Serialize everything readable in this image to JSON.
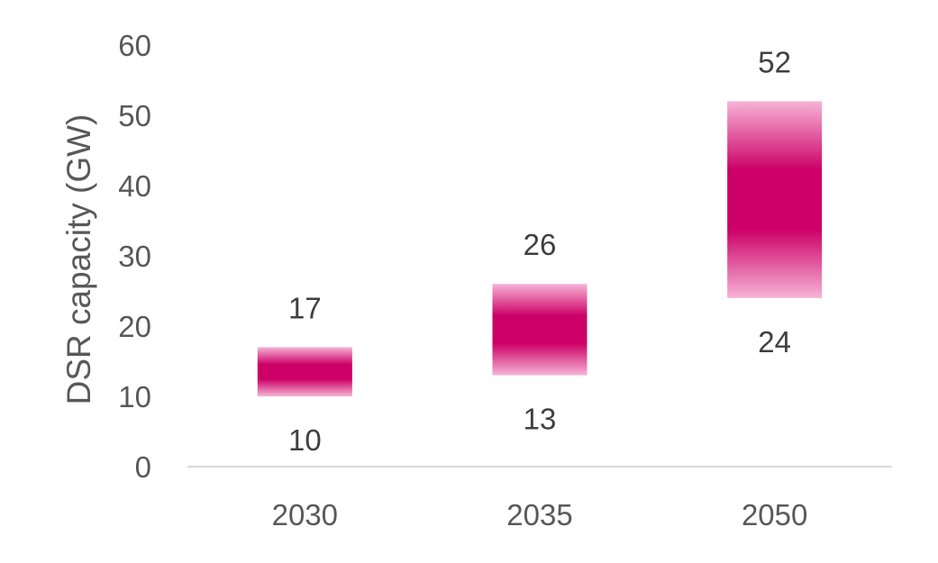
{
  "chart_data": {
    "type": "bar",
    "subtype": "floating-range",
    "title": "",
    "xlabel": "",
    "ylabel": "DSR capacity (GW)",
    "ylim": [
      0,
      60
    ],
    "yticks": [
      "0",
      "10",
      "20",
      "30",
      "40",
      "50",
      "60"
    ],
    "categories": [
      "2030",
      "2035",
      "2050"
    ],
    "series": [
      {
        "low": 10,
        "high": 17
      },
      {
        "low": 13,
        "high": 26
      },
      {
        "low": 24,
        "high": 52
      }
    ],
    "colors": {
      "fill_core": "#cc0066",
      "fill_edge": "#f7b3d6",
      "axis": "#d9d9d9",
      "text": "#595959"
    },
    "grid": false,
    "legend": "none"
  }
}
